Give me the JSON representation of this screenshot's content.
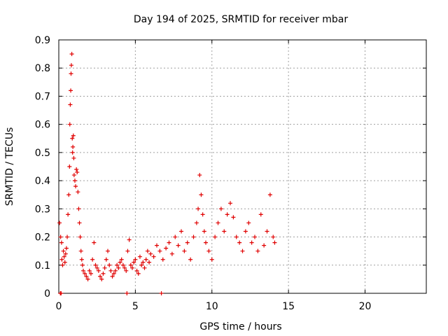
{
  "chart_data": {
    "type": "scatter",
    "title": "Day 194 of 2025, SRMTID for receiver mbar",
    "xlabel": "GPS time / hours",
    "ylabel": "SRMTID / TECUs",
    "xlim": [
      0,
      24
    ],
    "ylim": [
      0,
      0.9
    ],
    "x_ticks": [
      0,
      5,
      10,
      15,
      20
    ],
    "y_ticks": [
      0,
      0.1,
      0.2,
      0.3,
      0.4,
      0.5,
      0.6,
      0.7,
      0.8,
      0.9
    ],
    "x_tick_labels": [
      "0",
      "5",
      "10",
      "15",
      "20"
    ],
    "y_tick_labels": [
      "0",
      "0.1",
      "0.2",
      "0.3",
      "0.4",
      "0.5",
      "0.6",
      "0.7",
      "0.8",
      "0.9"
    ],
    "grid": true,
    "marker": "+",
    "series": [
      {
        "name": "SRMTID",
        "color": "#e00000",
        "x": [
          0.05,
          0.12,
          0.18,
          0.2,
          0.25,
          0.3,
          0.35,
          0.4,
          0.45,
          0.5,
          0.55,
          0.6,
          0.65,
          0.7,
          0.72,
          0.75,
          0.78,
          0.8,
          0.82,
          0.85,
          0.88,
          0.9,
          0.92,
          0.95,
          0.98,
          1.0,
          1.05,
          1.1,
          1.15,
          1.2,
          1.25,
          1.3,
          1.35,
          1.4,
          1.45,
          1.5,
          1.55,
          1.6,
          1.7,
          1.8,
          1.9,
          2.0,
          2.1,
          2.2,
          2.3,
          2.4,
          2.5,
          2.6,
          2.7,
          2.8,
          2.9,
          3.0,
          3.1,
          3.2,
          3.3,
          3.4,
          3.5,
          3.6,
          3.7,
          3.8,
          3.9,
          4.0,
          4.1,
          4.2,
          4.3,
          4.4,
          4.5,
          4.6,
          4.7,
          4.8,
          4.9,
          5.0,
          5.1,
          5.2,
          5.3,
          5.4,
          5.5,
          5.6,
          5.7,
          5.8,
          5.9,
          6.0,
          6.2,
          6.4,
          6.6,
          6.8,
          7.0,
          7.2,
          7.4,
          7.6,
          7.8,
          8.0,
          8.2,
          8.4,
          8.6,
          8.8,
          9.0,
          9.1,
          9.2,
          9.3,
          9.4,
          9.5,
          9.6,
          9.8,
          10.0,
          10.2,
          10.4,
          10.6,
          10.8,
          11.0,
          11.2,
          11.4,
          11.6,
          11.8,
          12.0,
          12.2,
          12.4,
          12.6,
          12.8,
          13.0,
          13.2,
          13.4,
          13.6,
          13.8,
          14.0,
          14.1,
          0.1,
          0.15,
          4.45,
          6.7
        ],
        "y": [
          0.25,
          0.2,
          0.18,
          0.12,
          0.1,
          0.15,
          0.13,
          0.11,
          0.14,
          0.16,
          0.2,
          0.28,
          0.35,
          0.45,
          0.6,
          0.67,
          0.72,
          0.78,
          0.81,
          0.85,
          0.55,
          0.5,
          0.52,
          0.56,
          0.48,
          0.42,
          0.4,
          0.38,
          0.44,
          0.43,
          0.36,
          0.3,
          0.25,
          0.2,
          0.15,
          0.12,
          0.1,
          0.08,
          0.07,
          0.06,
          0.05,
          0.08,
          0.07,
          0.12,
          0.18,
          0.1,
          0.09,
          0.08,
          0.06,
          0.05,
          0.07,
          0.09,
          0.12,
          0.15,
          0.1,
          0.08,
          0.06,
          0.07,
          0.08,
          0.1,
          0.09,
          0.11,
          0.12,
          0.1,
          0.09,
          0.08,
          0.15,
          0.19,
          0.1,
          0.09,
          0.11,
          0.12,
          0.08,
          0.07,
          0.13,
          0.1,
          0.11,
          0.09,
          0.12,
          0.15,
          0.11,
          0.14,
          0.13,
          0.17,
          0.15,
          0.12,
          0.16,
          0.18,
          0.14,
          0.2,
          0.17,
          0.22,
          0.15,
          0.18,
          0.12,
          0.2,
          0.25,
          0.3,
          0.42,
          0.35,
          0.28,
          0.22,
          0.18,
          0.15,
          0.12,
          0.2,
          0.25,
          0.3,
          0.22,
          0.28,
          0.32,
          0.27,
          0.2,
          0.18,
          0.15,
          0.22,
          0.25,
          0.18,
          0.2,
          0.15,
          0.28,
          0.17,
          0.22,
          0.35,
          0.2,
          0.18,
          0.0,
          0.0,
          0.0,
          0.0
        ]
      }
    ]
  }
}
